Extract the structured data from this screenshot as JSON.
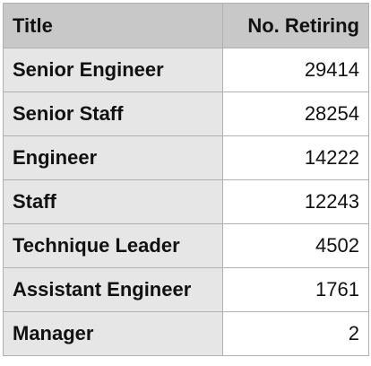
{
  "table": {
    "headers": {
      "title": "Title",
      "count": "No. Retiring"
    },
    "rows": [
      {
        "title": "Senior Engineer",
        "count": "29414"
      },
      {
        "title": "Senior Staff",
        "count": "28254"
      },
      {
        "title": "Engineer",
        "count": "14222"
      },
      {
        "title": "Staff",
        "count": "12243"
      },
      {
        "title": "Technique Leader",
        "count": "4502"
      },
      {
        "title": "Assistant Engineer",
        "count": "1761"
      },
      {
        "title": "Manager",
        "count": "2"
      }
    ]
  },
  "colors": {
    "header_bg": "#c8c8c8",
    "label_col_bg": "#e6e6e6",
    "value_col_bg": "#ffffff",
    "border": "#b0b0b0"
  }
}
